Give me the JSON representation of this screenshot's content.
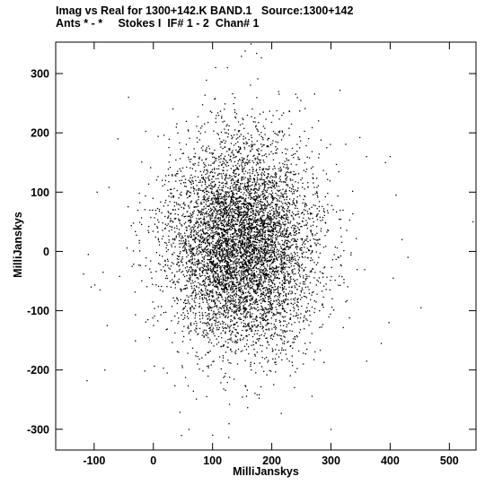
{
  "header": {
    "line1": "Imag vs Real for 1300+142.K BAND.1   Source:1300+142",
    "line2": "Ants * - *     Stokes I  IF# 1 - 2  Chan# 1"
  },
  "chart_data": {
    "type": "scatter",
    "title": "Imag vs Real for 1300+142.K BAND.1   Source:1300+142",
    "subtitle": "Ants * - *     Stokes I  IF# 1 - 2  Chan# 1",
    "xlabel": "MilliJanskys",
    "ylabel": "MilliJanskys",
    "xlim": [
      -165,
      545
    ],
    "ylim": [
      -335,
      353
    ],
    "xticks": [
      -100,
      0,
      100,
      200,
      300,
      400,
      500
    ],
    "yticks": [
      -300,
      -200,
      -100,
      0,
      100,
      200,
      300
    ],
    "grid": false,
    "point_color": "#000000",
    "cloud": {
      "n_points": 6500,
      "center": [
        150,
        10
      ],
      "std": [
        62,
        88
      ],
      "seed": 1300142
    },
    "outliers": [
      [
        540,
        50
      ],
      [
        452,
        -95
      ],
      [
        430,
        -10
      ],
      [
        420,
        20
      ],
      [
        410,
        95
      ],
      [
        405,
        -45
      ],
      [
        400,
        160
      ],
      [
        398,
        -120
      ],
      [
        392,
        150
      ],
      [
        385,
        -155
      ],
      [
        -118,
        -38
      ],
      [
        -112,
        -218
      ],
      [
        -110,
        -5
      ],
      [
        -105,
        -60
      ],
      [
        -95,
        100
      ],
      [
        -90,
        -65
      ],
      [
        -85,
        -35
      ],
      [
        -82,
        -200
      ],
      [
        -78,
        -125
      ],
      [
        -75,
        108
      ],
      [
        165,
        350
      ],
      [
        155,
        338
      ],
      [
        125,
        310
      ],
      [
        60,
        -300
      ],
      [
        100,
        -310
      ],
      [
        315,
        272
      ],
      [
        -42,
        260
      ],
      [
        105,
        310
      ],
      [
        300,
        -300
      ],
      [
        360,
        160
      ],
      [
        -60,
        190
      ]
    ]
  }
}
